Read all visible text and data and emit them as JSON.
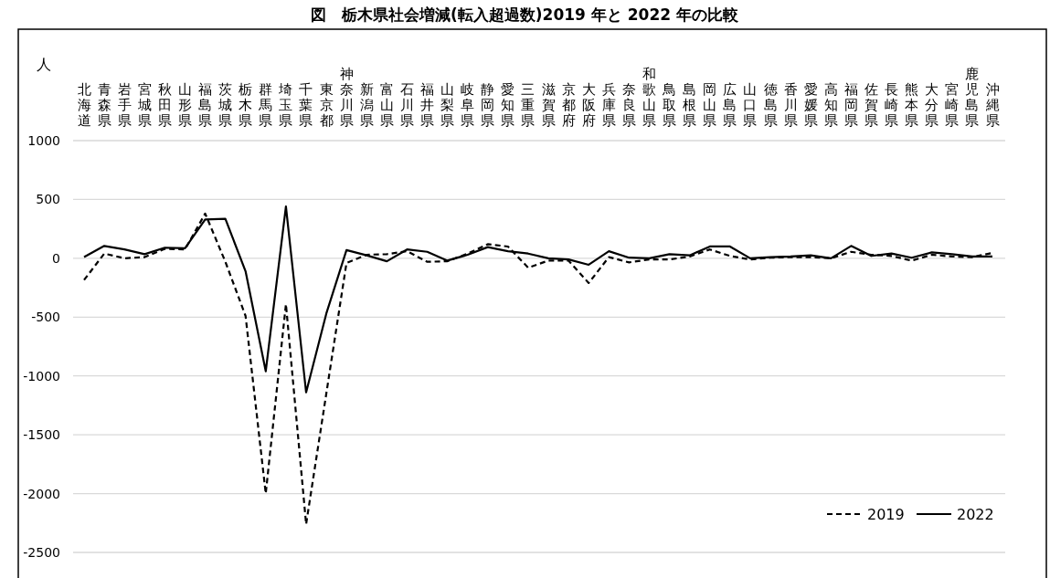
{
  "chart_data": {
    "type": "line",
    "title": "図　栃木県社会増減(転入超過数)2019 年と 2022 年の比較",
    "ylabel": "人",
    "categories": [
      "北海道",
      "青森県",
      "岩手県",
      "宮城県",
      "秋田県",
      "山形県",
      "福島県",
      "茨城県",
      "栃木県",
      "群馬県",
      "埼玉県",
      "千葉県",
      "東京都",
      "神奈川県",
      "新潟県",
      "富山県",
      "石川県",
      "福井県",
      "山梨県",
      "岐阜県",
      "静岡県",
      "愛知県",
      "三重県",
      "滋賀県",
      "京都府",
      "大阪府",
      "兵庫県",
      "奈良県",
      "和歌山県",
      "鳥取県",
      "島根県",
      "岡山県",
      "広島県",
      "山口県",
      "徳島県",
      "香川県",
      "愛媛県",
      "高知県",
      "福岡県",
      "佐賀県",
      "長崎県",
      "熊本県",
      "大分県",
      "宮崎県",
      "鹿児島県",
      "沖縄県"
    ],
    "series": [
      {
        "name": "2019",
        "color": "#000000",
        "line_style": "dashed",
        "values": [
          -185,
          40,
          0,
          10,
          80,
          75,
          380,
          -30,
          -490,
          -2000,
          -390,
          -2260,
          -1150,
          -40,
          30,
          35,
          60,
          -30,
          -25,
          40,
          120,
          100,
          -80,
          -20,
          -20,
          -210,
          10,
          -35,
          -10,
          -10,
          15,
          75,
          20,
          -10,
          5,
          10,
          10,
          0,
          55,
          30,
          20,
          -20,
          30,
          15,
          10,
          45
        ]
      },
      {
        "name": "2022",
        "color": "#000000",
        "line_style": "solid",
        "values": [
          10,
          105,
          75,
          35,
          90,
          85,
          330,
          335,
          -110,
          -960,
          440,
          -1140,
          -470,
          70,
          25,
          -25,
          75,
          55,
          -20,
          30,
          95,
          60,
          40,
          0,
          -10,
          -55,
          60,
          5,
          0,
          35,
          25,
          100,
          100,
          0,
          10,
          15,
          25,
          0,
          105,
          20,
          40,
          5,
          50,
          35,
          15,
          15
        ]
      }
    ],
    "ylim": [
      -2500,
      1000
    ],
    "yticks": [
      -2500,
      -2000,
      -1500,
      -1000,
      -500,
      0,
      500,
      1000
    ],
    "grid": "y",
    "legend": "bottom right"
  }
}
